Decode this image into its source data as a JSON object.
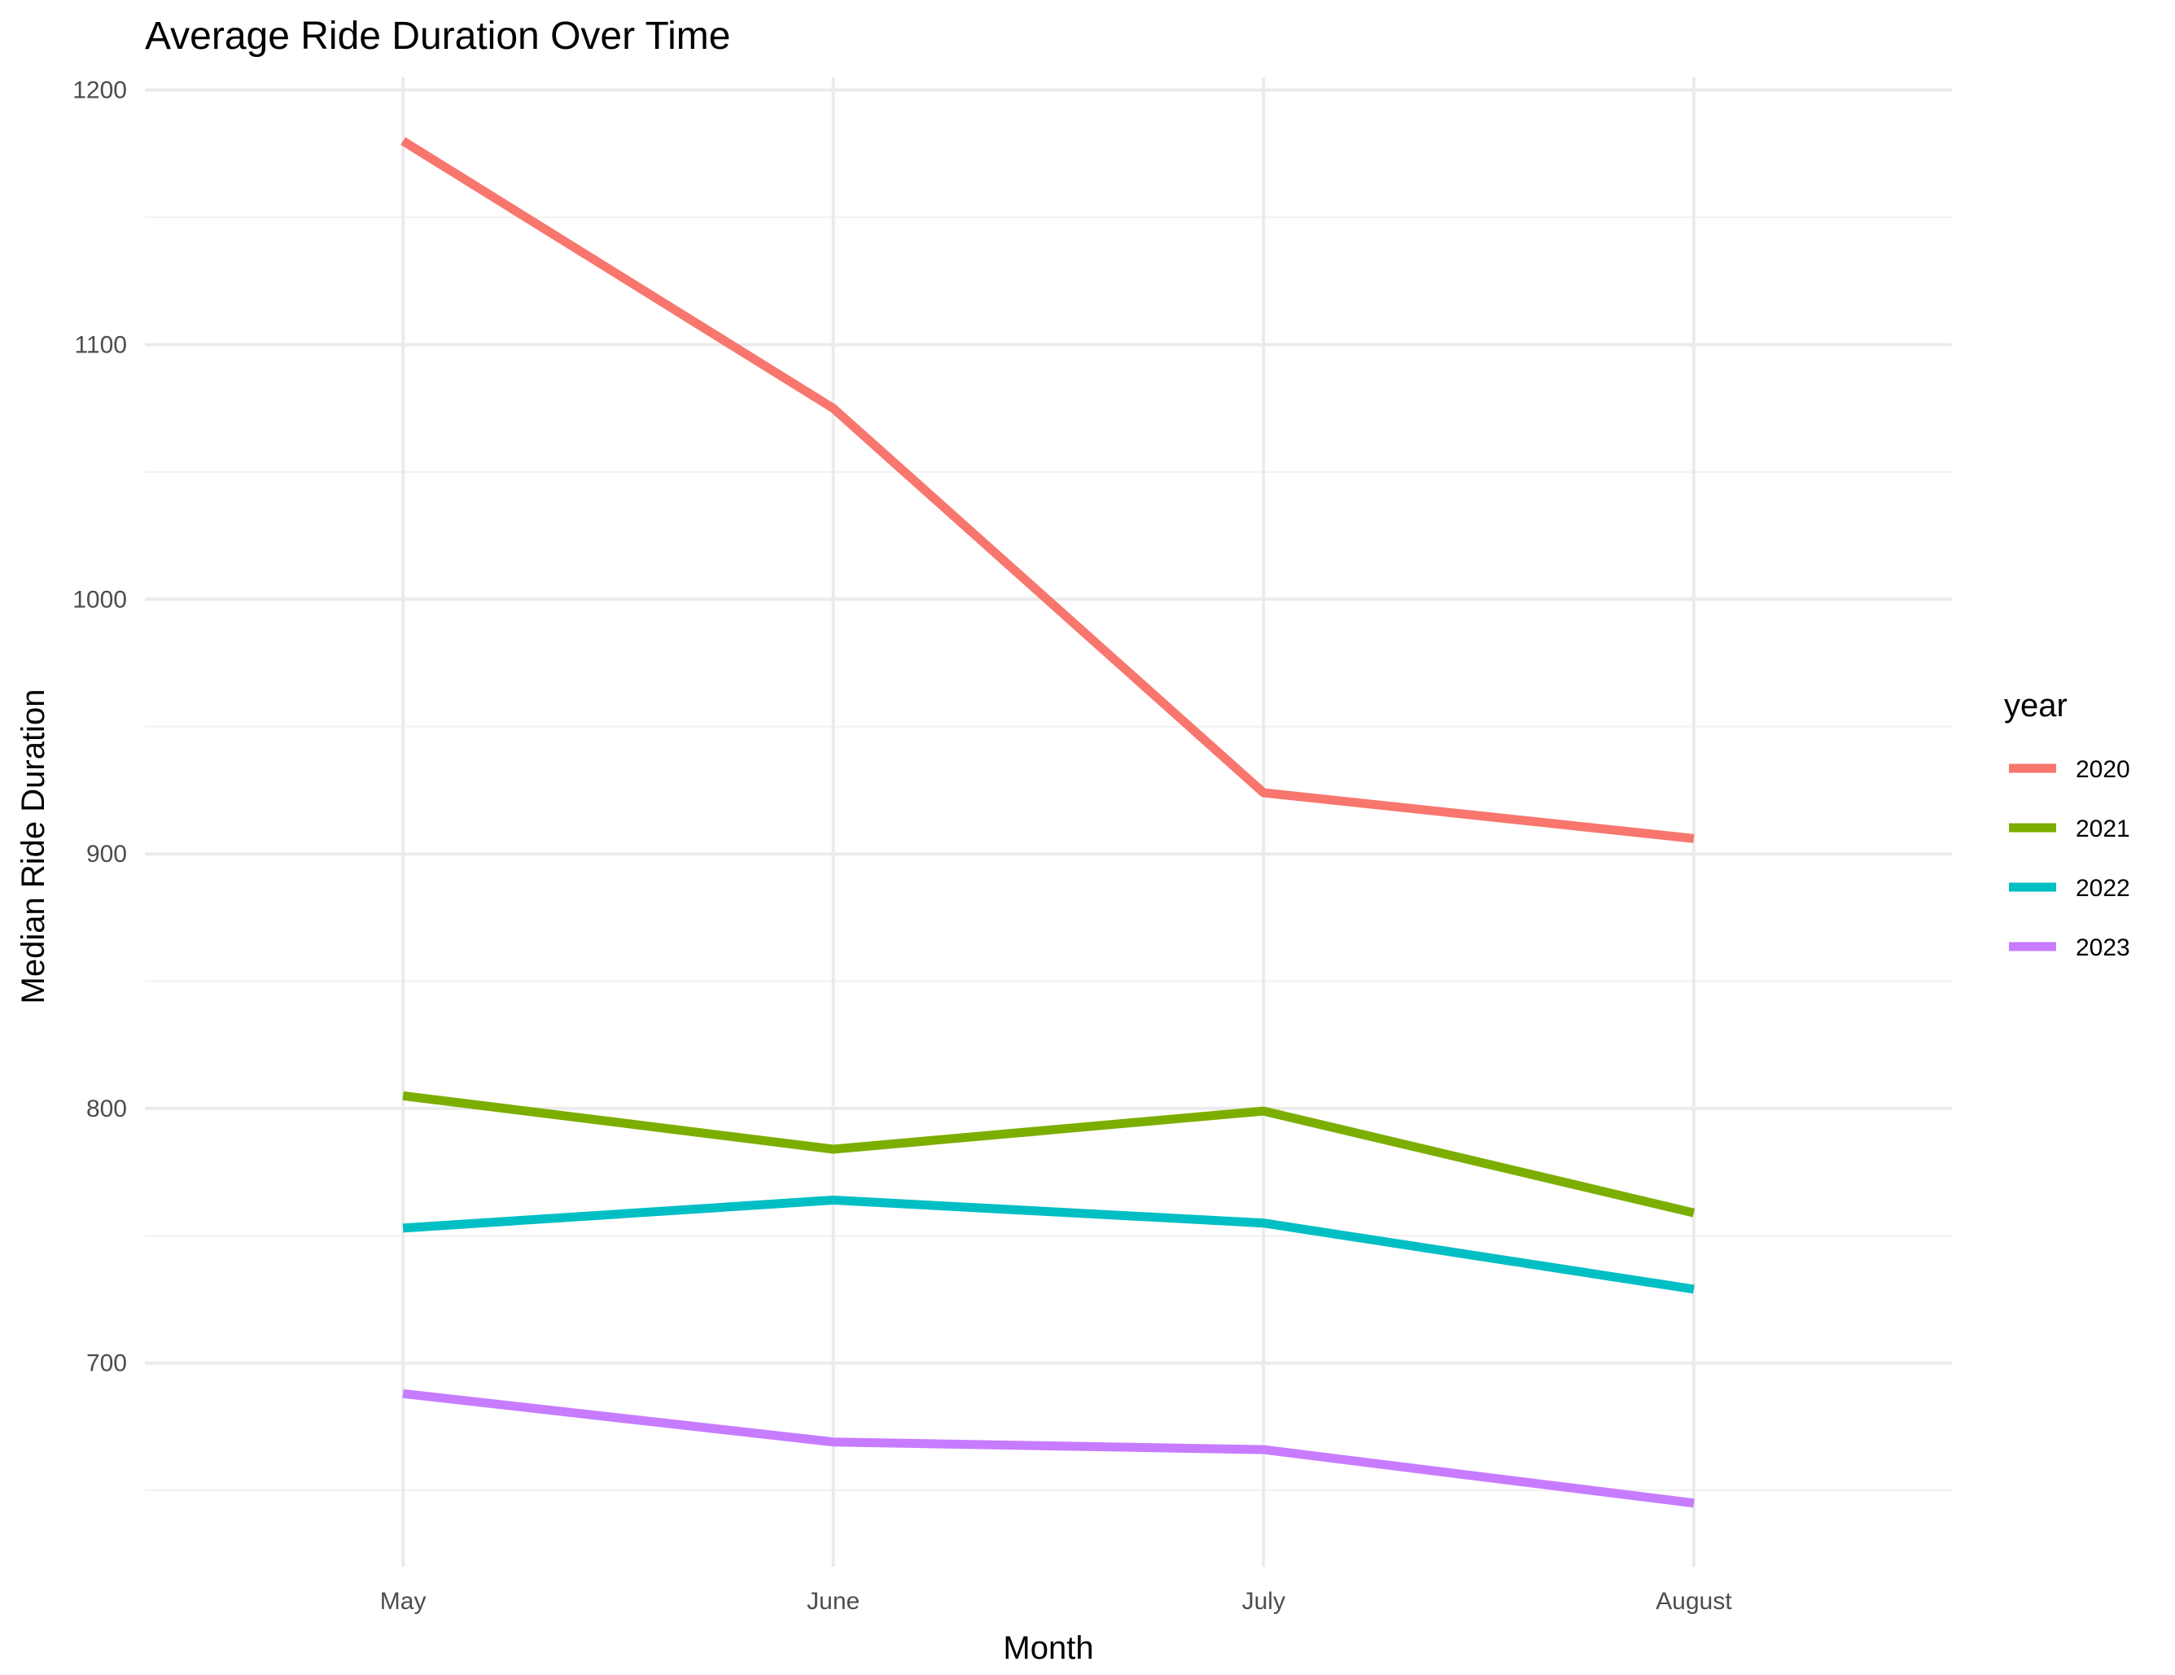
{
  "chart_data": {
    "type": "line",
    "title": "Average Ride Duration Over Time",
    "xlabel": "Month",
    "ylabel": "Median Ride Duration",
    "categories": [
      "May",
      "June",
      "July",
      "August"
    ],
    "ylim": [
      620,
      1205
    ],
    "yticks": [
      700,
      800,
      900,
      1000,
      1100,
      1200
    ],
    "yticks_minor": [
      650,
      750,
      850,
      950,
      1050,
      1150
    ],
    "grid": true,
    "legend": {
      "title": "year",
      "position": "right"
    },
    "series": [
      {
        "name": "2020",
        "color": "#F8766D",
        "values": [
          1180,
          1075,
          924,
          906
        ]
      },
      {
        "name": "2021",
        "color": "#7CAE00",
        "values": [
          805,
          784,
          799,
          759
        ]
      },
      {
        "name": "2022",
        "color": "#00BFC4",
        "values": [
          753,
          764,
          755,
          729
        ]
      },
      {
        "name": "2023",
        "color": "#C77CFF",
        "values": [
          688,
          669,
          666,
          645
        ]
      }
    ]
  }
}
